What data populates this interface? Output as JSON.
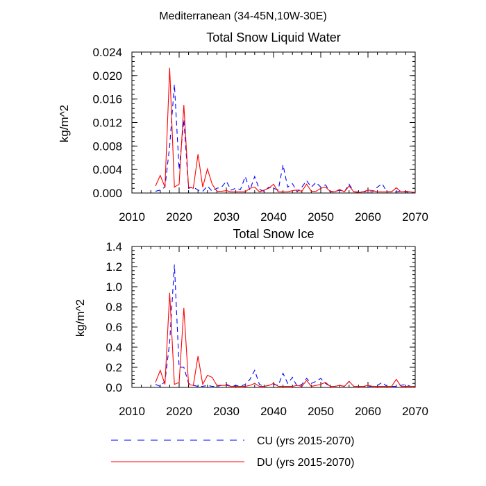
{
  "figure": {
    "title": "Mediterranean (34-45N,10W-30E)"
  },
  "colors": {
    "cu": "#0000ff",
    "du": "#ff0000",
    "axis": "#000000"
  },
  "legend": {
    "placement": "bottom",
    "cu_label": "CU (yrs 2015-2070)",
    "du_label": "DU (yrs 2015-2070)"
  },
  "chart_data": [
    {
      "type": "line",
      "title": "Total Snow Liquid Water",
      "xlabel": "",
      "ylabel": "kg/m^2",
      "xlim": [
        2010,
        2070
      ],
      "ylim": [
        0,
        0.024
      ],
      "xticks": [
        2010,
        2020,
        2030,
        2040,
        2050,
        2060,
        2070
      ],
      "yticks": [
        0.0,
        0.004,
        0.008,
        0.012,
        0.016,
        0.02,
        0.024
      ],
      "ytick_labels": [
        "0.000",
        "0.004",
        "0.008",
        "0.012",
        "0.016",
        "0.020",
        "0.024"
      ],
      "grid": false,
      "x": [
        2015,
        2016,
        2017,
        2018,
        2019,
        2020,
        2021,
        2022,
        2023,
        2024,
        2025,
        2026,
        2027,
        2028,
        2029,
        2030,
        2031,
        2032,
        2033,
        2034,
        2035,
        2036,
        2037,
        2038,
        2039,
        2040,
        2041,
        2042,
        2043,
        2044,
        2045,
        2046,
        2047,
        2048,
        2049,
        2050,
        2051,
        2052,
        2053,
        2054,
        2055,
        2056,
        2057,
        2058,
        2059,
        2060,
        2061,
        2062,
        2063,
        2064,
        2065,
        2066,
        2067,
        2068,
        2069,
        2070
      ],
      "series": [
        {
          "name": "CU (yrs 2015-2070)",
          "style": "dashed",
          "values": [
            0.0003,
            0.0005,
            0.001,
            0.008,
            0.0185,
            0.004,
            0.0125,
            0.0008,
            0.001,
            0.0005,
            0.0003,
            0.0012,
            0.0003,
            0.0008,
            0.001,
            0.002,
            0.0005,
            0.0008,
            0.0006,
            0.0028,
            0.0005,
            0.0028,
            0.0006,
            0.0003,
            0.001,
            0.0008,
            0.0005,
            0.0048,
            0.001,
            0.0016,
            0.0002,
            0.001,
            0.0021,
            0.001,
            0.0018,
            0.001,
            0.0014,
            0.0002,
            0.0002,
            0.0005,
            0.0002,
            0.0015,
            0.0002,
            0.0002,
            0.0002,
            0.0002,
            0.0002,
            0.001,
            0.0016,
            0.0002,
            0.0002,
            0.0002,
            0.0003,
            0.0002,
            0.0001,
            0.0001
          ]
        },
        {
          "name": "DU (yrs 2015-2070)",
          "style": "solid",
          "values": [
            0.0012,
            0.003,
            0.001,
            0.0213,
            0.001,
            0.0015,
            0.015,
            0.001,
            0.0008,
            0.0066,
            0.001,
            0.0041,
            0.0015,
            0.0003,
            0.0003,
            0.0004,
            0.0002,
            0.0002,
            0.0002,
            0.0002,
            0.0008,
            0.001,
            0.0002,
            0.0005,
            0.0008,
            0.0015,
            0.0002,
            0.0002,
            0.0002,
            0.0004,
            0.0005,
            0.0003,
            0.0015,
            0.0003,
            0.0003,
            0.0008,
            0.001,
            0.0003,
            0.0002,
            0.0006,
            0.0002,
            0.0012,
            0.0002,
            0.0001,
            0.0002,
            0.0005,
            0.0004,
            0.0002,
            0.0002,
            0.0002,
            0.0002,
            0.0009,
            0.0002,
            0.0003,
            0.0002,
            0.0001
          ]
        }
      ]
    },
    {
      "type": "line",
      "title": "Total Snow Ice",
      "xlabel": "",
      "ylabel": "kg/m^2",
      "xlim": [
        2010,
        2070
      ],
      "ylim": [
        0,
        1.4
      ],
      "xticks": [
        2010,
        2020,
        2030,
        2040,
        2050,
        2060,
        2070
      ],
      "yticks": [
        0.0,
        0.2,
        0.4,
        0.6,
        0.8,
        1.0,
        1.2,
        1.4
      ],
      "ytick_labels": [
        "0.0",
        "0.2",
        "0.4",
        "0.6",
        "0.8",
        "1.0",
        "1.2",
        "1.4"
      ],
      "grid": false,
      "x": [
        2015,
        2016,
        2017,
        2018,
        2019,
        2020,
        2021,
        2022,
        2023,
        2024,
        2025,
        2026,
        2027,
        2028,
        2029,
        2030,
        2031,
        2032,
        2033,
        2034,
        2035,
        2036,
        2037,
        2038,
        2039,
        2040,
        2041,
        2042,
        2043,
        2044,
        2045,
        2046,
        2047,
        2048,
        2049,
        2050,
        2051,
        2052,
        2053,
        2054,
        2055,
        2056,
        2057,
        2058,
        2059,
        2060,
        2061,
        2062,
        2063,
        2064,
        2065,
        2066,
        2067,
        2068,
        2069,
        2070
      ],
      "series": [
        {
          "name": "CU (yrs 2015-2070)",
          "style": "dashed",
          "values": [
            0.03,
            0.01,
            0.06,
            0.45,
            1.22,
            0.2,
            0.2,
            0.04,
            0.02,
            0.01,
            0.01,
            0.02,
            0.01,
            0.01,
            0.02,
            0.03,
            0.01,
            0.02,
            0.01,
            0.03,
            0.08,
            0.17,
            0.03,
            0.01,
            0.02,
            0.03,
            0.02,
            0.14,
            0.04,
            0.1,
            0.01,
            0.03,
            0.09,
            0.04,
            0.06,
            0.09,
            0.04,
            0.01,
            0.01,
            0.02,
            0.01,
            0.06,
            0.01,
            0.01,
            0.01,
            0.01,
            0.01,
            0.02,
            0.05,
            0.01,
            0.01,
            0.01,
            0.02,
            0.03,
            0.01,
            0.01
          ]
        },
        {
          "name": "DU (yrs 2015-2070)",
          "style": "solid",
          "values": [
            0.05,
            0.17,
            0.03,
            0.94,
            0.03,
            0.05,
            0.79,
            0.03,
            0.02,
            0.31,
            0.03,
            0.12,
            0.1,
            0.02,
            0.02,
            0.02,
            0.01,
            0.01,
            0.01,
            0.01,
            0.02,
            0.04,
            0.01,
            0.01,
            0.02,
            0.04,
            0.01,
            0.01,
            0.01,
            0.01,
            0.02,
            0.01,
            0.07,
            0.01,
            0.02,
            0.03,
            0.05,
            0.01,
            0.01,
            0.02,
            0.01,
            0.06,
            0.01,
            0.01,
            0.01,
            0.02,
            0.01,
            0.01,
            0.01,
            0.01,
            0.01,
            0.08,
            0.01,
            0.01,
            0.01,
            0.01
          ]
        }
      ]
    }
  ]
}
